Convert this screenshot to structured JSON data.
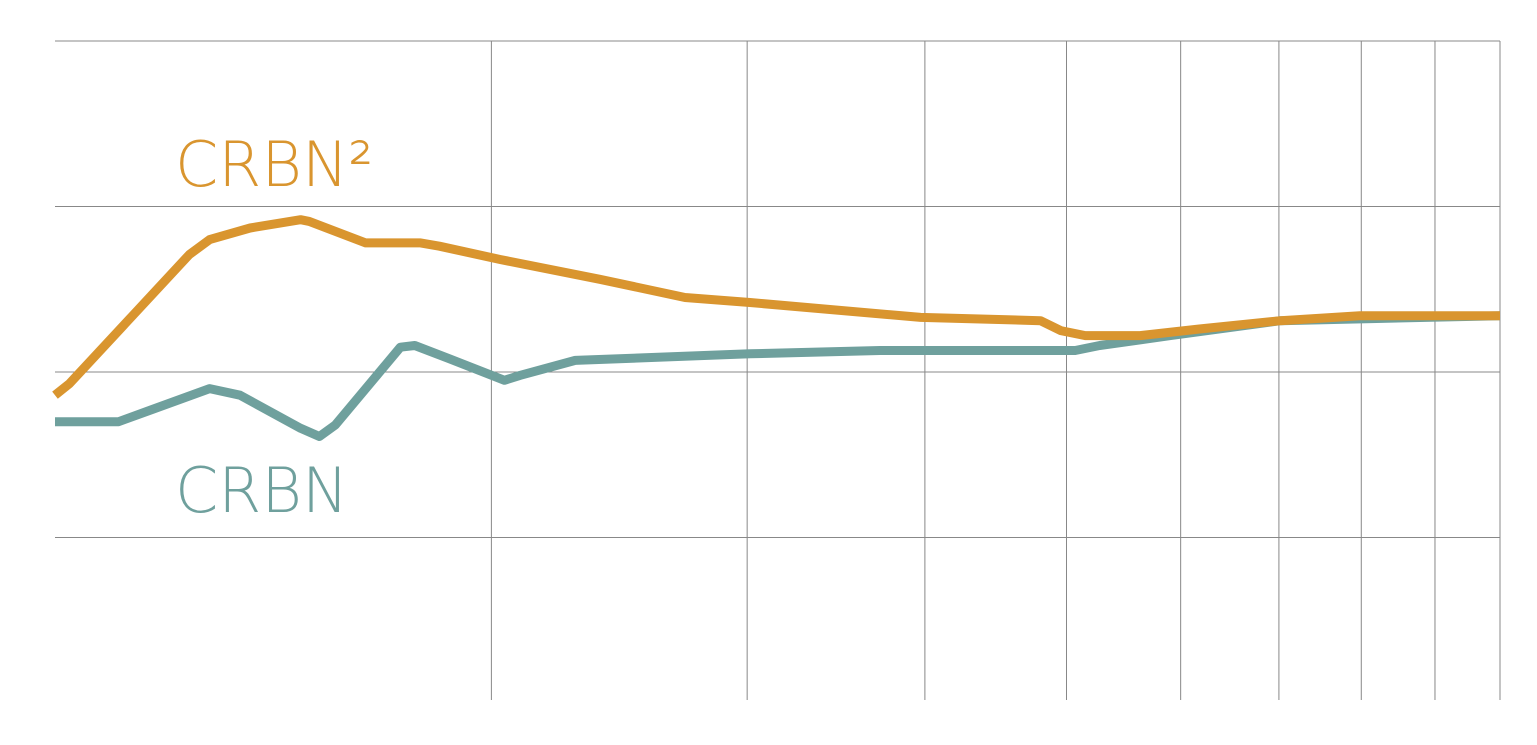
{
  "chart_data": {
    "type": "line",
    "xlim": [
      0,
      100
    ],
    "xticks": [
      30.2,
      47.9,
      60.2,
      70,
      77.9,
      84.7,
      90.4,
      95.5,
      100
    ],
    "ylim": [
      0,
      40
    ],
    "yticks": [
      10,
      20,
      30,
      40
    ],
    "grid": true,
    "series": [
      {
        "name": "CRBN",
        "color": "#6fa09d",
        "x": [
          0,
          4.4,
          6.6,
          10.7,
          12.8,
          17.0,
          18.3,
          19.4,
          23.9,
          24.9,
          27.3,
          31.1,
          32.2,
          36.0,
          48.1,
          57.1,
          70.6,
          72.3,
          77.2,
          84.8,
          100
        ],
        "values": [
          17.0,
          17.0,
          17.7,
          19.0,
          18.6,
          16.6,
          16.1,
          16.8,
          21.5,
          21.6,
          20.8,
          19.5,
          19.8,
          20.7,
          21.1,
          21.3,
          21.3,
          21.6,
          22.2,
          23.1,
          23.4
        ]
      },
      {
        "name": "CRBN²",
        "color": "#d9952f",
        "x": [
          0,
          1.0,
          9.3,
          10.7,
          13.5,
          17.0,
          17.6,
          21.5,
          25.3,
          26.6,
          30.8,
          37.7,
          43.6,
          48.1,
          59.9,
          68.2,
          69.6,
          71.3,
          75.1,
          79.2,
          84.8,
          90.3,
          100
        ],
        "values": [
          18.6,
          19.3,
          27.1,
          28.0,
          28.7,
          29.2,
          29.1,
          27.8,
          27.8,
          27.6,
          26.8,
          25.6,
          24.5,
          24.2,
          23.3,
          23.1,
          22.5,
          22.2,
          22.2,
          22.6,
          23.1,
          23.4,
          23.4
        ]
      }
    ]
  }
}
